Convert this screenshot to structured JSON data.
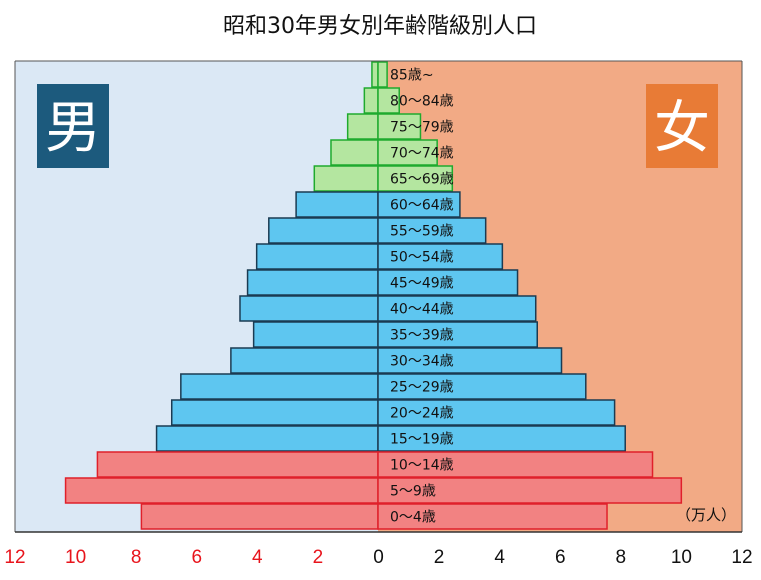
{
  "chart_data": {
    "type": "bar",
    "title": "昭和30年男女別年齢階級別人口",
    "unit_label": "（万人）",
    "left_badge": "男",
    "right_badge": "女",
    "x_tick_labels": [
      "12",
      "10",
      "8",
      "6",
      "4",
      "2",
      "0",
      "2",
      "4",
      "6",
      "8",
      "10",
      "12"
    ],
    "xlim": [
      -12,
      12
    ],
    "categories": [
      "85歳~",
      "80～84歳",
      "75～79歳",
      "70～74歳",
      "65～69歳",
      "60～64歳",
      "55～59歳",
      "50～54歳",
      "45～49歳",
      "40～44歳",
      "35～39歳",
      "30～34歳",
      "25～29歳",
      "20～24歳",
      "15～19歳",
      "10～14歳",
      "5～9歳",
      "0～4歳"
    ],
    "groups": [
      "elderly",
      "elderly",
      "elderly",
      "elderly",
      "elderly",
      "working",
      "working",
      "working",
      "working",
      "working",
      "working",
      "working",
      "working",
      "working",
      "working",
      "child",
      "child",
      "child"
    ],
    "male": [
      0.2,
      0.45,
      1.0,
      1.55,
      2.1,
      2.7,
      3.6,
      4.0,
      4.3,
      4.55,
      4.1,
      4.85,
      6.5,
      6.8,
      7.3,
      9.25,
      10.3,
      7.8
    ],
    "female": [
      0.3,
      0.7,
      1.4,
      1.95,
      2.45,
      2.7,
      3.55,
      4.1,
      4.6,
      5.2,
      5.25,
      6.05,
      6.85,
      7.8,
      8.15,
      9.05,
      10.0,
      7.55
    ],
    "colors": {
      "male_background": "#dbe8f5",
      "female_background": "#f2aa85",
      "male_badge": "#1c5a7d",
      "female_badge": "#e87b36",
      "elderly_fill": "#b4e6a0",
      "elderly_stroke": "#1faa2e",
      "working_fill": "#5ec6f0",
      "working_stroke": "#1b3b52",
      "child_fill": "#f28282",
      "child_stroke": "#e0202a",
      "left_tick_color": "#e8141c"
    }
  }
}
